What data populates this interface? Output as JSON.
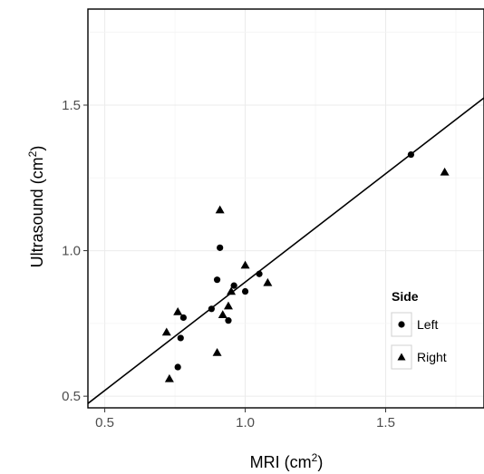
{
  "chart_data": {
    "type": "scatter",
    "xlabel": "MRI (cm",
    "xlabel_sup": "2",
    "xlabel_end": ")",
    "ylabel": "Ultrasound (cm",
    "ylabel_sup": "2",
    "ylabel_end": ")",
    "xlim": [
      0.44,
      1.85
    ],
    "ylim": [
      0.46,
      1.83
    ],
    "xticks": [
      0.5,
      1.0,
      1.5
    ],
    "yticks": [
      0.5,
      1.0,
      1.5
    ],
    "xtick_labels": [
      "0.5",
      "1.0",
      "1.5"
    ],
    "ytick_labels": [
      "0.5",
      "1.0",
      "1.5"
    ],
    "grid": true,
    "fit_line": {
      "x": [
        0.44,
        1.85
      ],
      "y": [
        0.475,
        1.525
      ]
    },
    "legend": {
      "title": "Side",
      "placement": "right",
      "entries": [
        "Left",
        "Right"
      ]
    },
    "series": [
      {
        "name": "Left",
        "marker": "circle",
        "points": [
          [
            0.76,
            0.6
          ],
          [
            0.77,
            0.7
          ],
          [
            0.78,
            0.77
          ],
          [
            0.88,
            0.8
          ],
          [
            0.9,
            0.9
          ],
          [
            0.91,
            1.01
          ],
          [
            0.94,
            0.76
          ],
          [
            0.96,
            0.88
          ],
          [
            1.0,
            0.86
          ],
          [
            1.05,
            0.92
          ],
          [
            1.59,
            1.33
          ]
        ]
      },
      {
        "name": "Right",
        "marker": "triangle",
        "points": [
          [
            0.72,
            0.72
          ],
          [
            0.73,
            0.56
          ],
          [
            0.76,
            0.79
          ],
          [
            0.9,
            0.65
          ],
          [
            0.91,
            1.14
          ],
          [
            0.92,
            0.78
          ],
          [
            0.94,
            0.81
          ],
          [
            0.95,
            0.86
          ],
          [
            1.0,
            0.95
          ],
          [
            1.08,
            0.89
          ],
          [
            1.71,
            1.27
          ]
        ]
      }
    ]
  }
}
